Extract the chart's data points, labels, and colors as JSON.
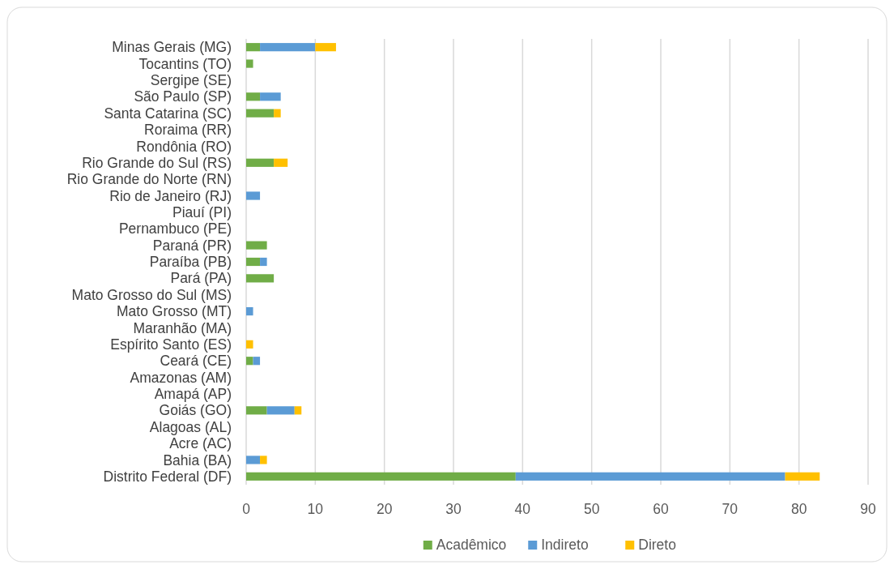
{
  "chart_data": {
    "type": "bar",
    "orientation": "horizontal",
    "stacked": true,
    "categories": [
      "Minas Gerais (MG)",
      "Tocantins (TO)",
      "Sergipe (SE)",
      "São Paulo (SP)",
      "Santa Catarina (SC)",
      "Roraima (RR)",
      "Rondônia (RO)",
      "Rio Grande do Sul (RS)",
      "Rio Grande do Norte (RN)",
      "Rio de Janeiro (RJ)",
      "Piauí (PI)",
      "Pernambuco (PE)",
      "Paraná (PR)",
      "Paraíba (PB)",
      "Pará (PA)",
      "Mato Grosso do Sul (MS)",
      "Mato Grosso (MT)",
      "Maranhão (MA)",
      "Espírito Santo (ES)",
      "Ceará (CE)",
      "Amazonas (AM)",
      "Amapá (AP)",
      "Goiás (GO)",
      "Alagoas (AL)",
      "Acre (AC)",
      "Bahia (BA)",
      "Distrito Federal (DF)"
    ],
    "series": [
      {
        "name": "Acadêmico",
        "color": "#70ad47",
        "values": [
          2,
          1,
          0,
          2,
          4,
          0,
          0,
          4,
          0,
          0,
          0,
          0,
          3,
          2,
          4,
          0,
          0,
          0,
          0,
          1,
          0,
          0,
          3,
          0,
          0,
          0,
          39
        ]
      },
      {
        "name": "Indireto",
        "color": "#5b9bd5",
        "values": [
          8,
          0,
          0,
          3,
          0,
          0,
          0,
          0,
          0,
          2,
          0,
          0,
          0,
          1,
          0,
          0,
          1,
          0,
          0,
          1,
          0,
          0,
          4,
          0,
          0,
          2,
          39
        ]
      },
      {
        "name": "Direto",
        "color": "#ffc000",
        "values": [
          3,
          0,
          0,
          0,
          1,
          0,
          0,
          2,
          0,
          0,
          0,
          0,
          0,
          0,
          0,
          0,
          0,
          0,
          1,
          0,
          0,
          0,
          1,
          0,
          0,
          1,
          5
        ]
      }
    ],
    "xlim": [
      0,
      90
    ],
    "xticks": [
      0,
      10,
      20,
      30,
      40,
      50,
      60,
      70,
      80,
      90
    ],
    "grid": "x",
    "legend": "bottom"
  }
}
